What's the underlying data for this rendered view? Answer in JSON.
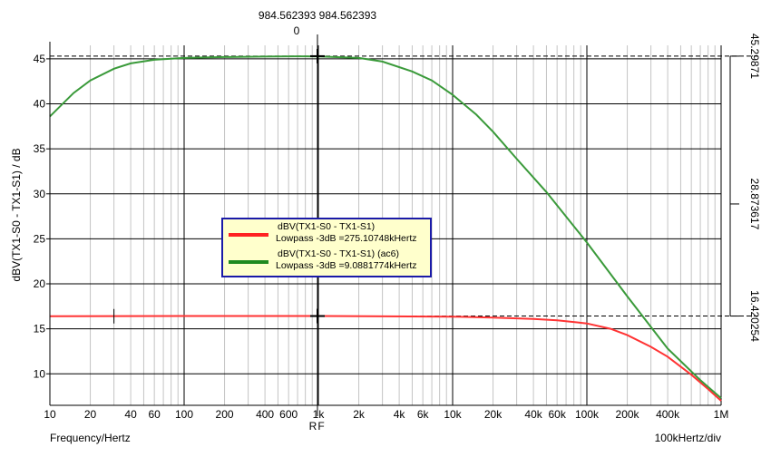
{
  "chart_data": {
    "type": "line",
    "xscale": "log",
    "xlim": [
      10,
      1000000
    ],
    "ylim": [
      6.5,
      46.5
    ],
    "grid": true,
    "legend_position": "center",
    "ylabel": "dBV(TX1-S0 - TX1-S1) / dB",
    "xlabel_left": "Frequency/Hertz",
    "xlabel_right": "100kHertz/div",
    "x_ticks": [
      {
        "v": 10,
        "t": "10"
      },
      {
        "v": 20,
        "t": "20"
      },
      {
        "v": 40,
        "t": "40"
      },
      {
        "v": 60,
        "t": "60"
      },
      {
        "v": 100,
        "t": "100"
      },
      {
        "v": 200,
        "t": "200"
      },
      {
        "v": 400,
        "t": "400"
      },
      {
        "v": 600,
        "t": "600"
      },
      {
        "v": 1000,
        "t": "1k"
      },
      {
        "v": 2000,
        "t": "2k"
      },
      {
        "v": 4000,
        "t": "4k"
      },
      {
        "v": 6000,
        "t": "6k"
      },
      {
        "v": 10000,
        "t": "10k"
      },
      {
        "v": 20000,
        "t": "20k"
      },
      {
        "v": 40000,
        "t": "40k"
      },
      {
        "v": 60000,
        "t": "60k"
      },
      {
        "v": 100000,
        "t": "100k"
      },
      {
        "v": 200000,
        "t": "200k"
      },
      {
        "v": 400000,
        "t": "400k"
      },
      {
        "v": 1000000,
        "t": "1M"
      }
    ],
    "y_ticks": [
      10,
      15,
      20,
      25,
      30,
      35,
      40,
      45
    ],
    "right_axis_labels": [
      {
        "v": 45.29871,
        "t": "45.29871"
      },
      {
        "v": 28.873617,
        "t": "28.873617"
      },
      {
        "v": 16.420254,
        "t": "16.420254"
      }
    ],
    "series": [
      {
        "name": "dBV(TX1-S0 - TX1-S1)",
        "note": "Lowpass -3dB =275.10748kHertz",
        "color": "#ff3333",
        "x": [
          10,
          100,
          1000,
          10000,
          20000,
          40000,
          60000,
          100000,
          150000,
          200000,
          300000,
          400000,
          600000,
          800000,
          1000000
        ],
        "y": [
          16.4,
          16.42,
          16.42,
          16.35,
          16.25,
          16.1,
          15.95,
          15.6,
          15.0,
          14.3,
          13.0,
          11.9,
          9.9,
          8.3,
          7.0
        ]
      },
      {
        "name": "dBV(TX1-S0 - TX1-S1) (ac6)",
        "note": "Lowpass -3dB =9.0881774kHertz",
        "color": "#3a9a3a",
        "x": [
          10,
          15,
          20,
          30,
          40,
          60,
          100,
          200,
          400,
          700,
          1000,
          2000,
          3000,
          5000,
          7000,
          10000,
          15000,
          20000,
          30000,
          50000,
          100000,
          200000,
          400000,
          700000,
          1000000
        ],
        "y": [
          38.6,
          41.2,
          42.6,
          43.9,
          44.5,
          44.9,
          45.1,
          45.2,
          45.25,
          45.28,
          45.27,
          45.1,
          44.7,
          43.6,
          42.6,
          41.0,
          38.8,
          36.9,
          33.9,
          30.2,
          24.6,
          18.6,
          12.8,
          9.3,
          7.3
        ]
      }
    ],
    "cursor": {
      "x_top_values": "984.562393 984.562393",
      "delta_label": "0",
      "x_label": "R",
      "x_label2": "F",
      "x": 984.562393,
      "y_upper": 45.29871,
      "y_lower": 16.420254
    },
    "marker_small": {
      "x": 30,
      "y": 16.4
    }
  }
}
